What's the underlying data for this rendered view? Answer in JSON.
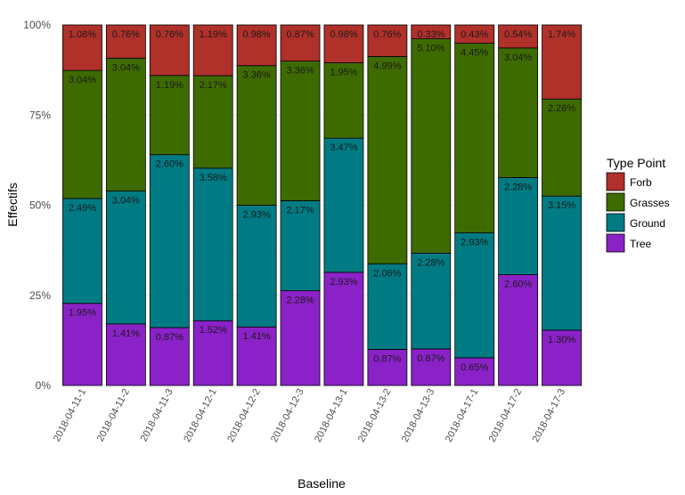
{
  "chart_data": {
    "type": "bar",
    "stacked": true,
    "xlabel": "Baseline",
    "ylabel": "Effectifs",
    "ylim": [
      0,
      100
    ],
    "y_ticks": [
      "0%",
      "25%",
      "50%",
      "75%",
      "100%"
    ],
    "grid": true,
    "legend": {
      "title": "Type Point",
      "position": "right"
    },
    "categories": [
      "2018-04-11-1",
      "2018-04-11-2",
      "2018-04-11-3",
      "2018-04-12-1",
      "2018-04-12-2",
      "2018-04-12-3",
      "2018-04-13-1",
      "2018-04-13-2",
      "2018-04-13-3",
      "2018-04-17-1",
      "2018-04-17-2",
      "2018-04-17-3"
    ],
    "series": [
      {
        "name": "Tree",
        "color": "#8B22C8",
        "values": [
          1.95,
          1.41,
          0.87,
          1.52,
          1.41,
          2.28,
          2.93,
          0.87,
          0.87,
          0.65,
          2.6,
          1.3
        ],
        "labels": [
          "1.95%",
          "1.41%",
          "0.87%",
          "1.52%",
          "1.41%",
          "2.28%",
          "2.93%",
          "0.87%",
          "0.87%",
          "0.65%",
          "2.60%",
          "1.30%"
        ]
      },
      {
        "name": "Ground",
        "color": "#007B83",
        "values": [
          2.49,
          3.04,
          2.6,
          3.58,
          2.93,
          2.17,
          3.47,
          2.06,
          2.28,
          2.93,
          2.28,
          3.15
        ],
        "labels": [
          "2.49%",
          "3.04%",
          "2.60%",
          "3.58%",
          "2.93%",
          "2.17%",
          "3.47%",
          "2.06%",
          "2.28%",
          "2.93%",
          "2.28%",
          "3.15%"
        ]
      },
      {
        "name": "Grasses",
        "color": "#3E6B00",
        "values": [
          3.04,
          3.04,
          1.19,
          2.17,
          3.36,
          3.36,
          1.95,
          4.99,
          5.1,
          4.45,
          3.04,
          2.28
        ],
        "labels": [
          "3.04%",
          "3.04%",
          "1.19%",
          "2.17%",
          "3.36%",
          "3.36%",
          "1.95%",
          "4.99%",
          "5.10%",
          "4.45%",
          "3.04%",
          "2.28%"
        ]
      },
      {
        "name": "Forb",
        "color": "#B0302A",
        "values": [
          1.08,
          0.76,
          0.76,
          1.19,
          0.98,
          0.87,
          0.98,
          0.76,
          0.33,
          0.43,
          0.54,
          1.74
        ],
        "labels": [
          "1.08%",
          "0.76%",
          "0.76%",
          "1.19%",
          "0.98%",
          "0.87%",
          "0.98%",
          "0.76%",
          "0.33%",
          "0.43%",
          "0.54%",
          "1.74%"
        ]
      }
    ],
    "legend_order": [
      "Forb",
      "Grasses",
      "Ground",
      "Tree"
    ]
  }
}
